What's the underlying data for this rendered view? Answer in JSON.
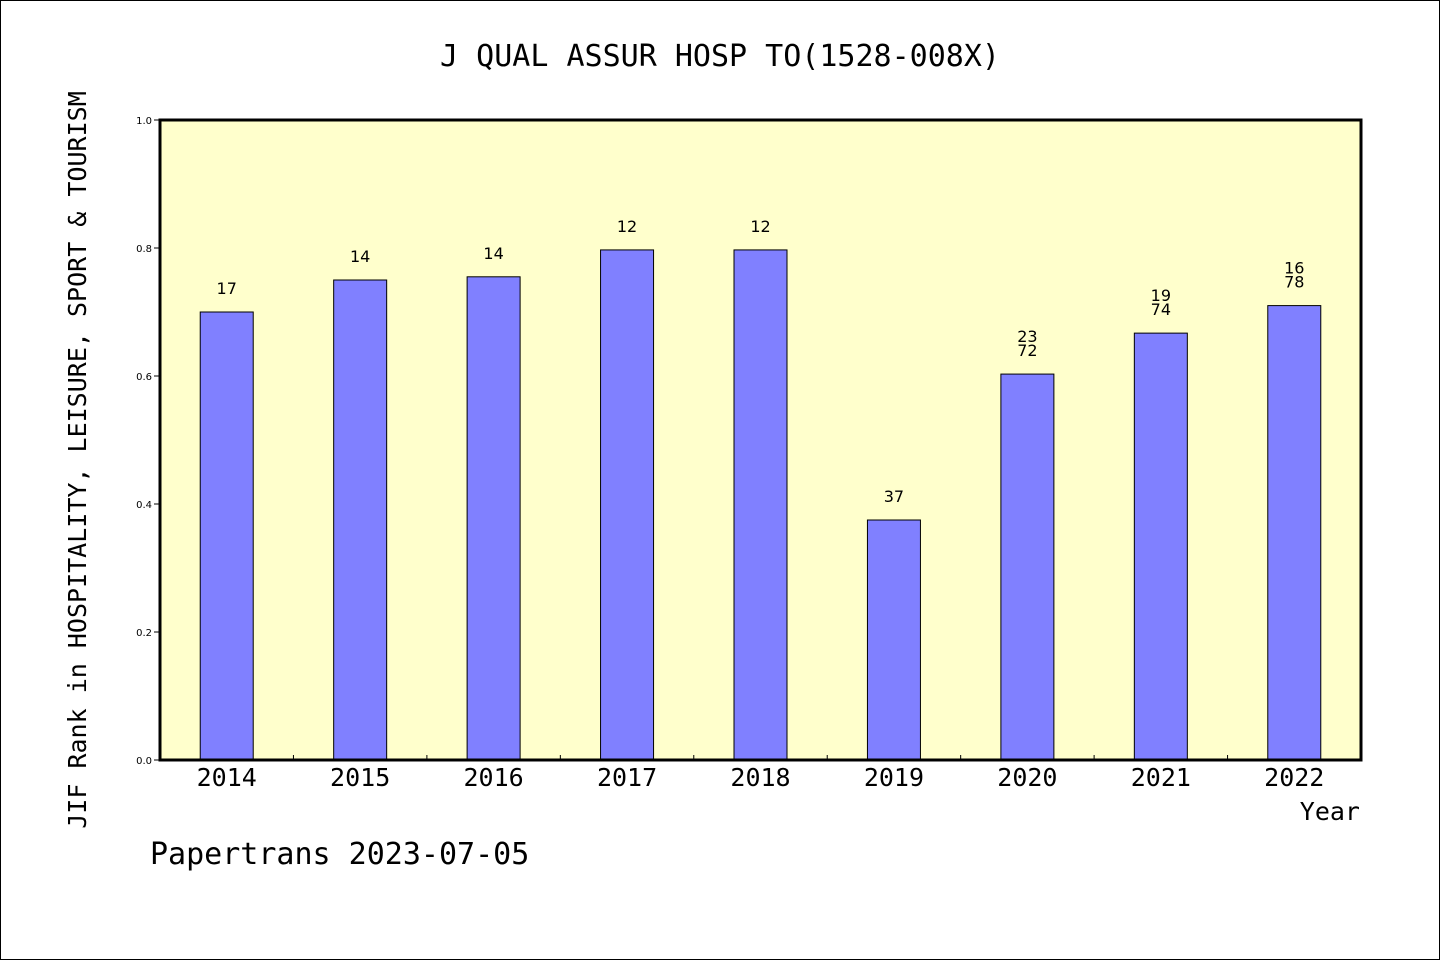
{
  "chart_data": {
    "type": "bar",
    "title": "J QUAL ASSUR HOSP TO(1528-008X)",
    "xlabel": "Year",
    "ylabel": "JIF Rank in HOSPITALITY, LEISURE, SPORT & TOURISM",
    "categories": [
      "2014",
      "2015",
      "2016",
      "2017",
      "2018",
      "2019",
      "2020",
      "2021",
      "2022"
    ],
    "values": [
      0.7,
      0.75,
      0.755,
      0.797,
      0.797,
      0.375,
      0.603,
      0.667,
      0.71
    ],
    "bar_labels": [
      [
        "17"
      ],
      [
        "14"
      ],
      [
        "14"
      ],
      [
        "12"
      ],
      [
        "12"
      ],
      [
        "37"
      ],
      [
        "23",
        "72"
      ],
      [
        "19",
        "74"
      ],
      [
        "16",
        "78"
      ]
    ],
    "ylim": [
      0,
      1.0
    ],
    "yticks": [
      "0.0",
      "0.2",
      "0.4",
      "0.6",
      "0.8",
      "1.0"
    ],
    "grid": false,
    "colors": {
      "bar": "#8080ff",
      "plot_background": "#ffffcc",
      "axis": "#000000"
    }
  },
  "footer": {
    "credit": "Papertrans 2023-07-05"
  }
}
